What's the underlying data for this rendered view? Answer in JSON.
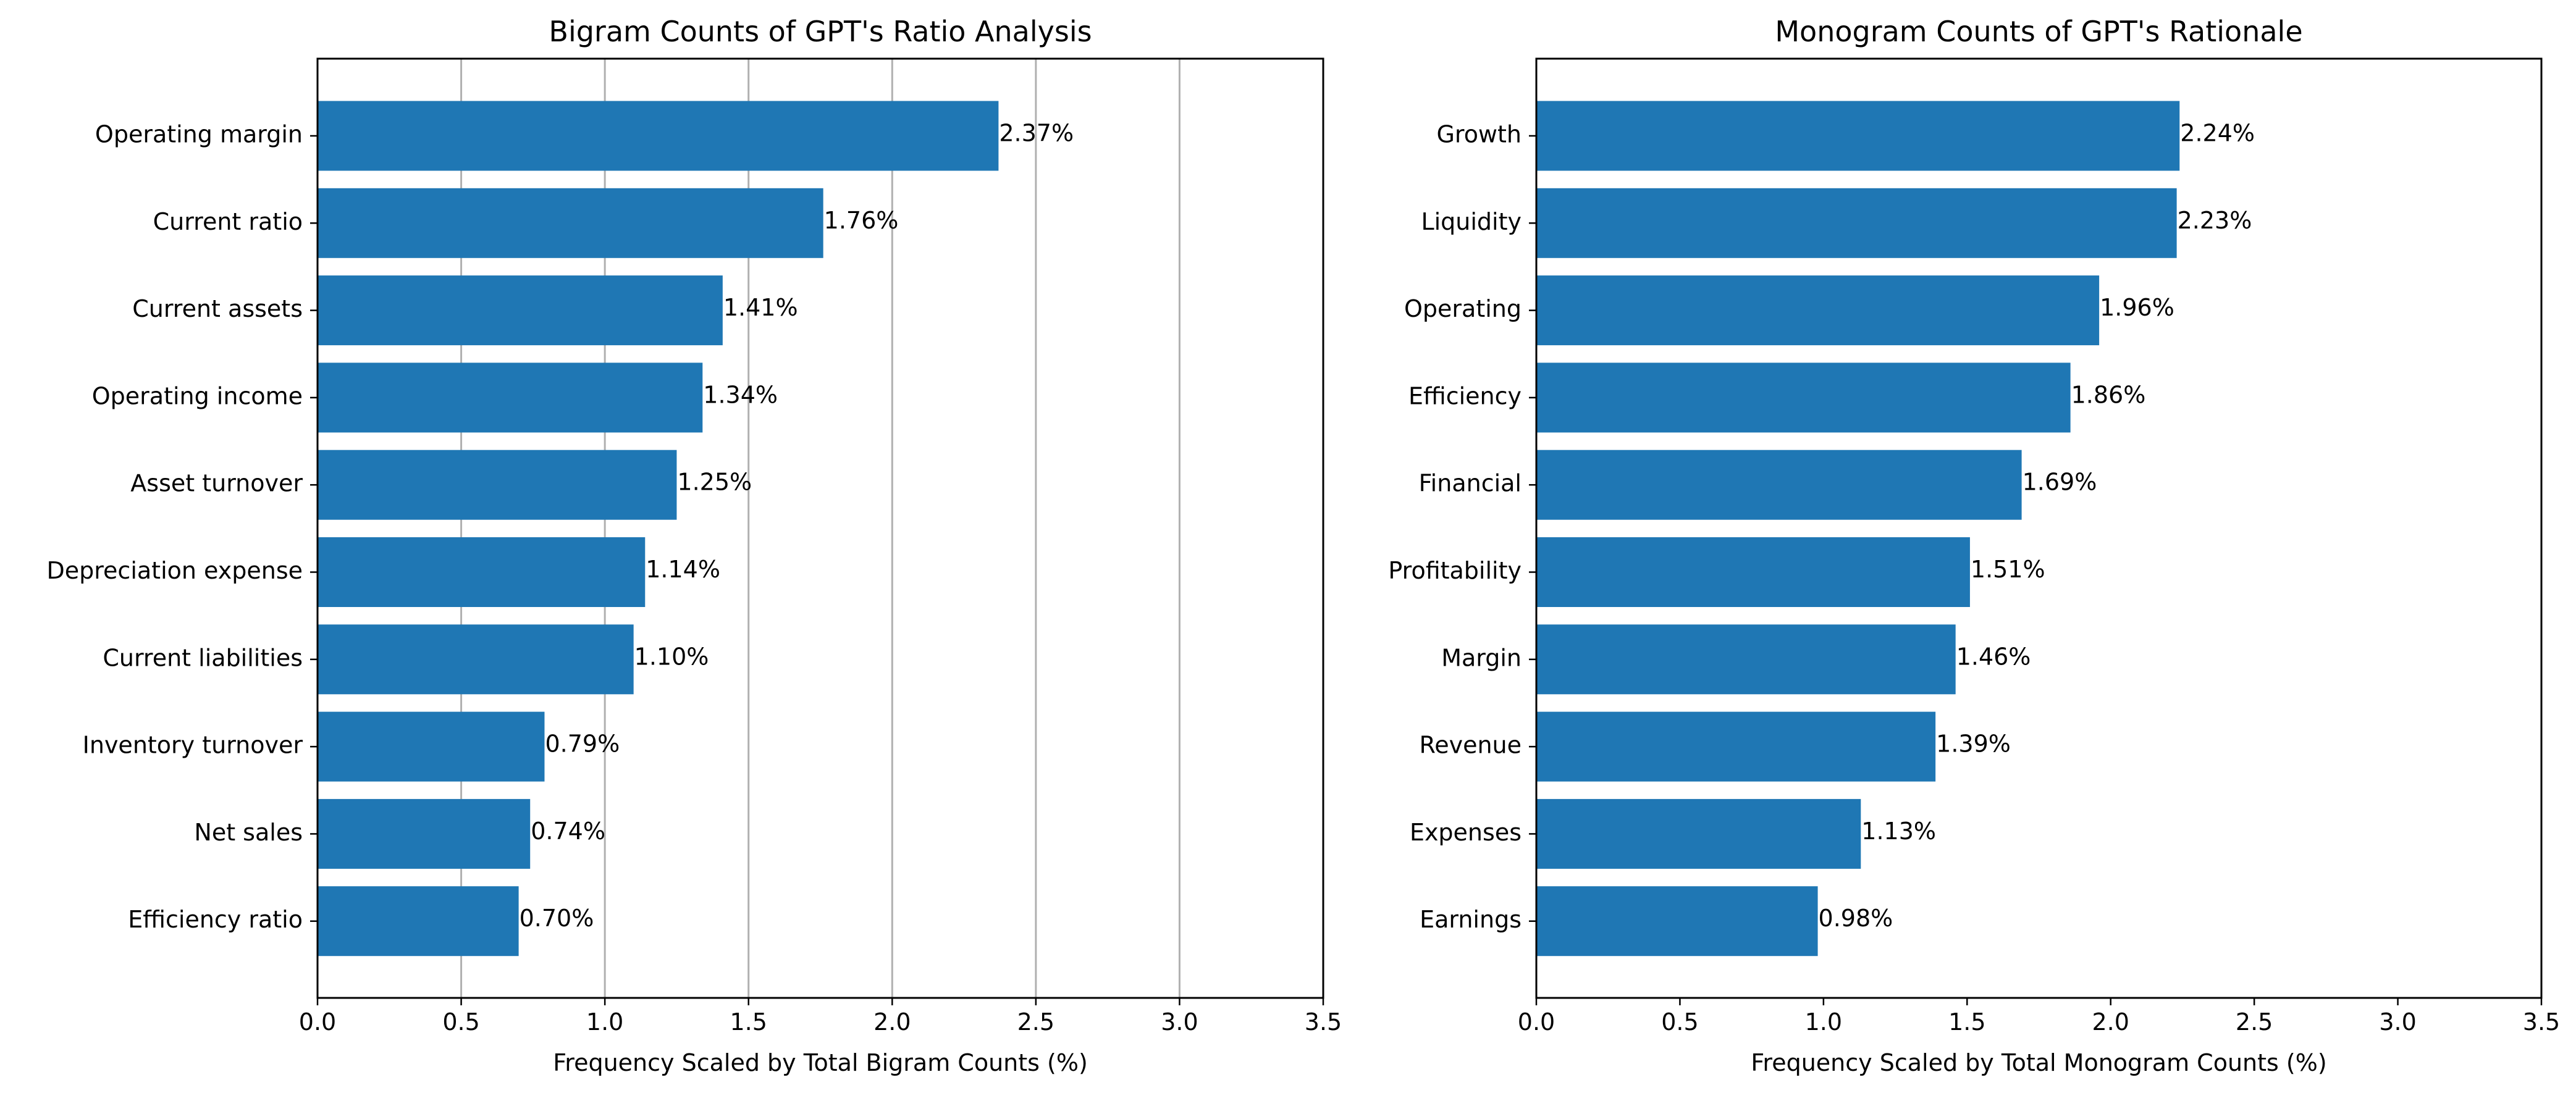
{
  "colors": {
    "bar": "#1f77b4",
    "grid": "#b0b0b0",
    "axis": "#000000"
  },
  "chart_data": [
    {
      "type": "bar",
      "orientation": "horizontal",
      "title": "Bigram Counts of GPT's Ratio Analysis",
      "xlabel": "Frequency Scaled by Total Bigram Counts (%)",
      "ylabel": "",
      "xlim": [
        0,
        3.5
      ],
      "xticks": [
        "0.0",
        "0.5",
        "1.0",
        "1.5",
        "2.0",
        "2.5",
        "3.0",
        "3.5"
      ],
      "grid": "vertical",
      "categories": [
        "Operating margin",
        "Current ratio",
        "Current assets",
        "Operating income",
        "Asset turnover",
        "Depreciation expense",
        "Current liabilities",
        "Inventory turnover",
        "Net sales",
        "Efficiency ratio"
      ],
      "values": [
        2.37,
        1.76,
        1.41,
        1.34,
        1.25,
        1.14,
        1.1,
        0.79,
        0.74,
        0.7
      ],
      "value_labels": [
        "2.37%",
        "1.76%",
        "1.41%",
        "1.34%",
        "1.25%",
        "1.14%",
        "1.10%",
        "0.79%",
        "0.74%",
        "0.70%"
      ]
    },
    {
      "type": "bar",
      "orientation": "horizontal",
      "title": "Monogram Counts of GPT's Rationale",
      "xlabel": "Frequency Scaled by Total Monogram Counts (%)",
      "ylabel": "",
      "xlim": [
        0,
        3.5
      ],
      "xticks": [
        "0.0",
        "0.5",
        "1.0",
        "1.5",
        "2.0",
        "2.5",
        "3.0",
        "3.5"
      ],
      "grid": "none",
      "categories": [
        "Growth",
        "Liquidity",
        "Operating",
        "Efficiency",
        "Financial",
        "Profitability",
        "Margin",
        "Revenue",
        "Expenses",
        "Earnings"
      ],
      "values": [
        2.24,
        2.23,
        1.96,
        1.86,
        1.69,
        1.51,
        1.46,
        1.39,
        1.13,
        0.98
      ],
      "value_labels": [
        "2.24%",
        "2.23%",
        "1.96%",
        "1.86%",
        "1.69%",
        "1.51%",
        "1.46%",
        "1.39%",
        "1.13%",
        "0.98%"
      ]
    }
  ]
}
